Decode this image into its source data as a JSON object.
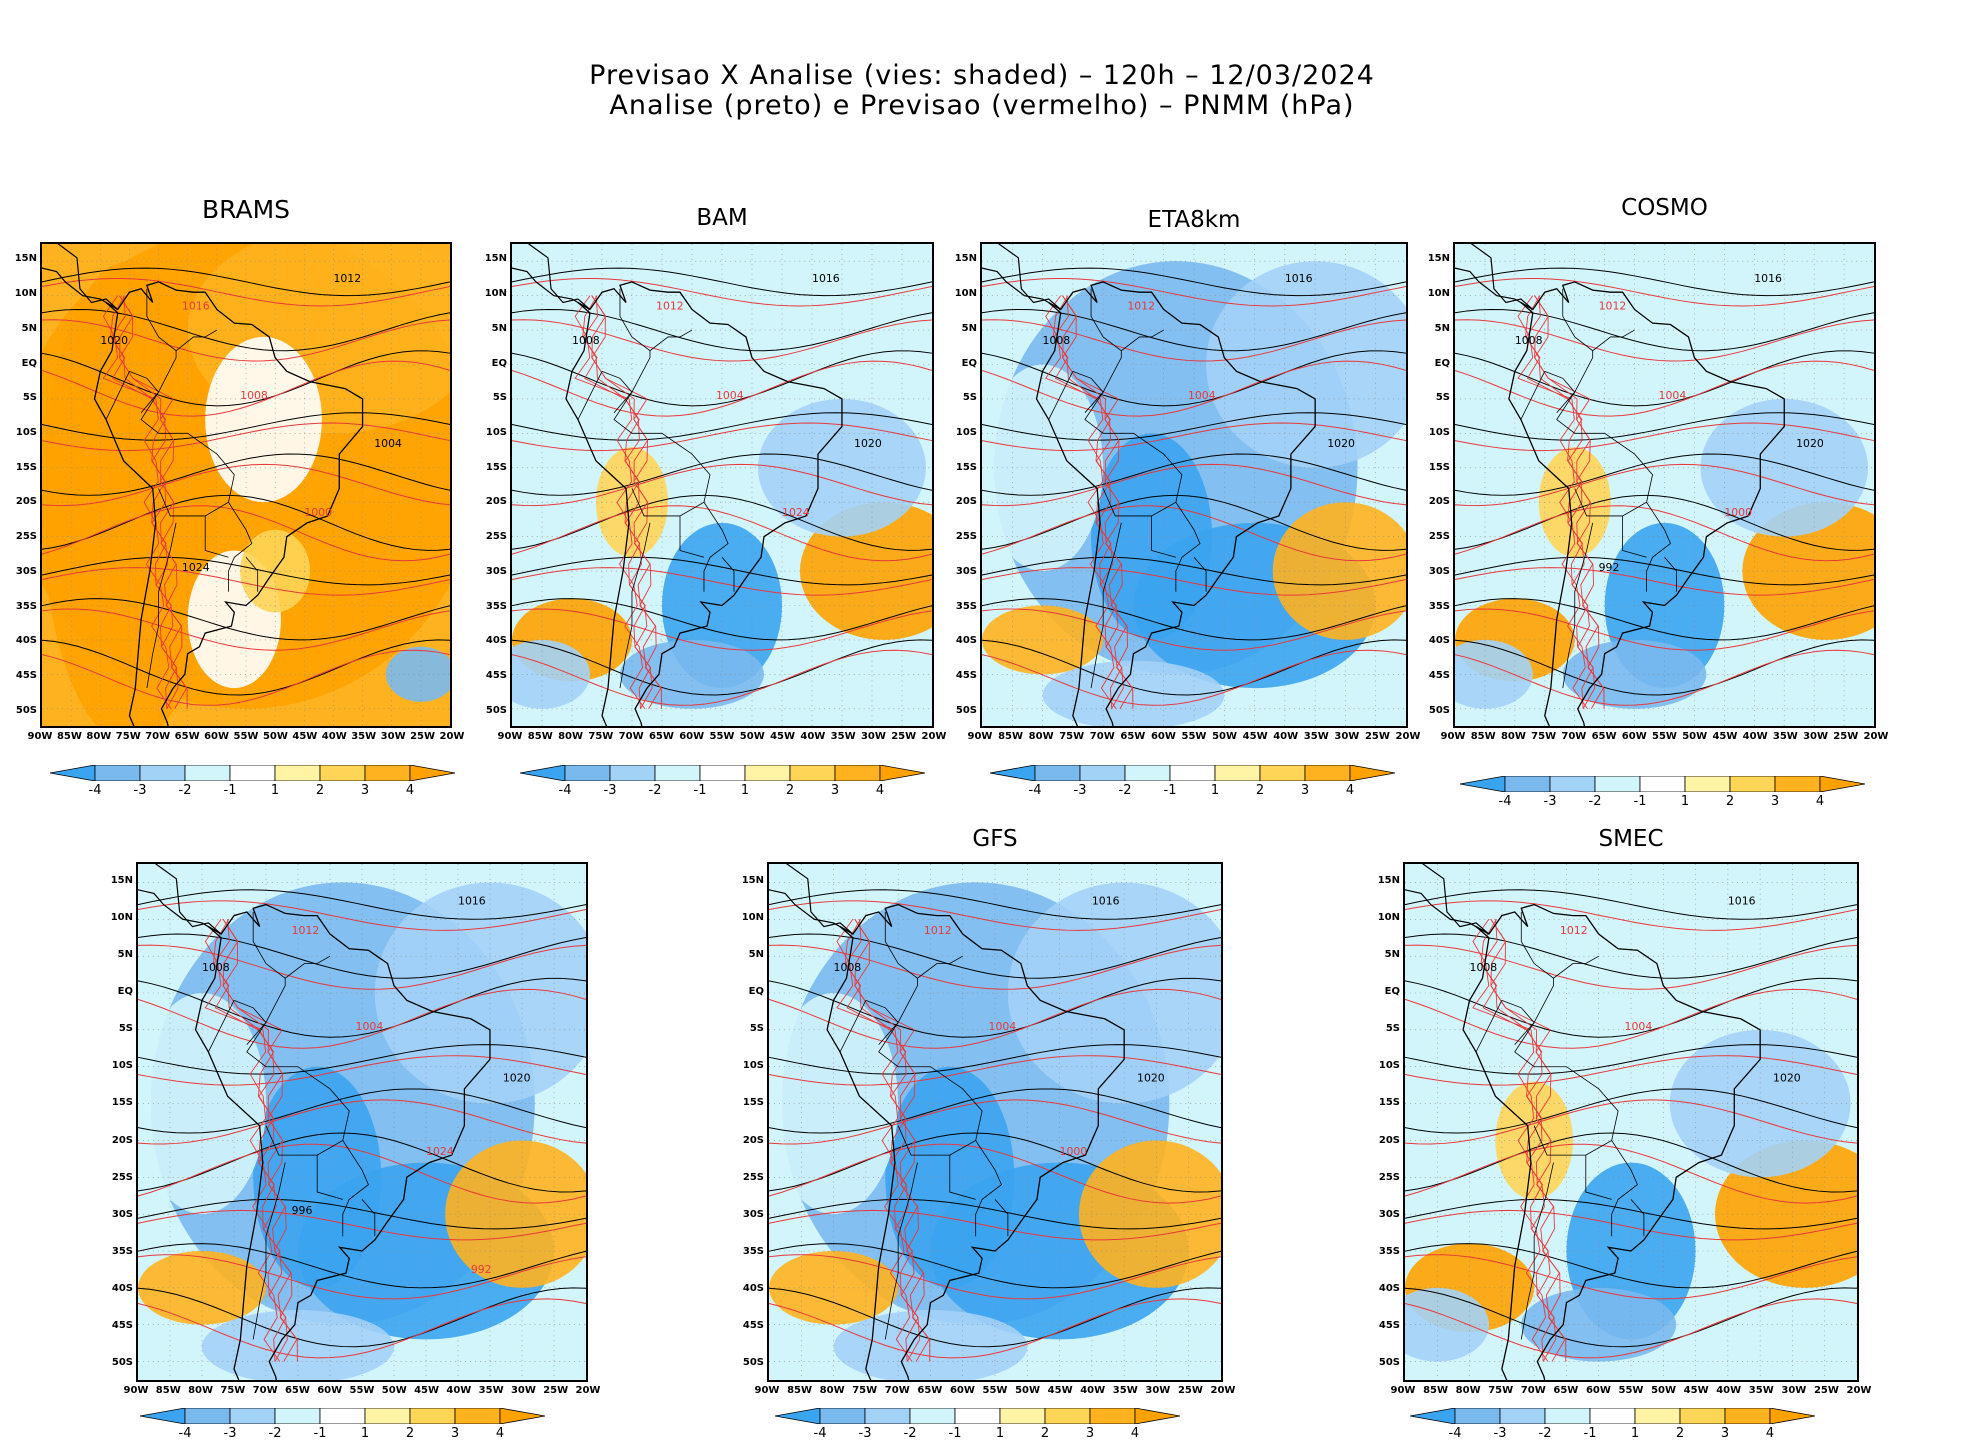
{
  "header": {
    "line1": "Previsao X Analise (vies: shaded) – 120h – 12/03/2024",
    "line2": "Analise (preto) e Previsao (vermelho) – PNMM (hPa)"
  },
  "axes": {
    "lat_labels": [
      "15N",
      "10N",
      "5N",
      "EQ",
      "5S",
      "10S",
      "15S",
      "20S",
      "25S",
      "30S",
      "35S",
      "40S",
      "45S",
      "50S"
    ],
    "lon_labels": [
      "90W",
      "85W",
      "80W",
      "75W",
      "70W",
      "65W",
      "60W",
      "55W",
      "50W",
      "45W",
      "40W",
      "35W",
      "30W",
      "25W",
      "20W"
    ]
  },
  "colorbar": {
    "labels": [
      "-4",
      "-3",
      "-2",
      "-1",
      "1",
      "2",
      "3",
      "4"
    ],
    "colors": [
      "#3ba4f0",
      "#7ab9ee",
      "#a3d2f7",
      "#d2f4fb",
      "#ffffff",
      "#fff4a6",
      "#ffd557",
      "#ffb21f",
      "#ffa200"
    ]
  },
  "legend_colors": {
    "analysis": "#000000",
    "forecast": "#e8383a"
  },
  "panels": [
    {
      "title": "BRAMS",
      "bias": "positive",
      "values": [
        "1012",
        "1016",
        "1020",
        "1008",
        "1004",
        "1000",
        "1024"
      ]
    },
    {
      "title": "BAM",
      "bias": "mixed",
      "values": [
        "1016",
        "1012",
        "1008",
        "1004",
        "1020",
        "1024"
      ]
    },
    {
      "title": "ETA8km",
      "bias": "negative",
      "values": [
        "1016",
        "1012",
        "1008",
        "1004",
        "1020"
      ]
    },
    {
      "title": "COSMO",
      "bias": "mixed",
      "values": [
        "1016",
        "1012",
        "1008",
        "1004",
        "1020",
        "1000",
        "992"
      ]
    },
    {
      "title": "",
      "bias": "negative",
      "values": [
        "1016",
        "1012",
        "1008",
        "1004",
        "1020",
        "1024",
        "996",
        "992"
      ]
    },
    {
      "title": "GFS",
      "bias": "negative",
      "values": [
        "1016",
        "1012",
        "1008",
        "1004",
        "1020",
        "1000"
      ]
    },
    {
      "title": "SMEC",
      "bias": "mixed",
      "values": [
        "1016",
        "1012",
        "1008",
        "1004",
        "1020"
      ]
    }
  ]
}
